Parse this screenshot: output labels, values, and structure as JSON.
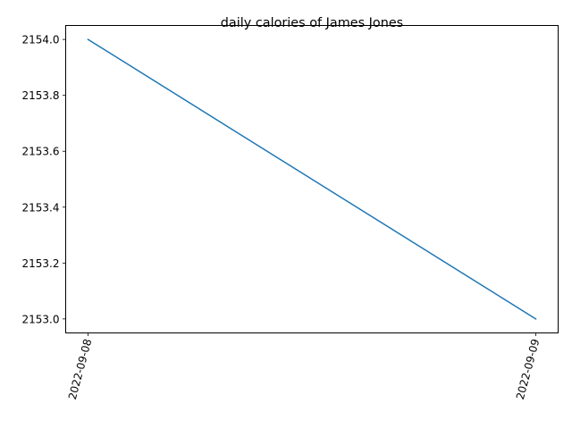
{
  "chart_data": {
    "type": "line",
    "title": "daily calories of James Jones",
    "xlabel": "",
    "ylabel": "",
    "x": [
      "2022-09-08",
      "2022-09-09"
    ],
    "series": [
      {
        "values": [
          2154.0,
          2153.0
        ],
        "color": "#1f77b4"
      }
    ],
    "ylim": [
      2152.95,
      2154.05
    ],
    "yticks": [
      2153.0,
      2153.2,
      2153.4,
      2153.6,
      2153.8,
      2154.0
    ],
    "ytick_labels": [
      "2153.0",
      "2153.2",
      "2153.4",
      "2153.6",
      "2153.8",
      "2154.0"
    ],
    "xtick_labels": [
      "2022-09-08",
      "2022-09-09"
    ],
    "xtick_rotation_deg": 75,
    "grid": false,
    "legend": "none"
  }
}
